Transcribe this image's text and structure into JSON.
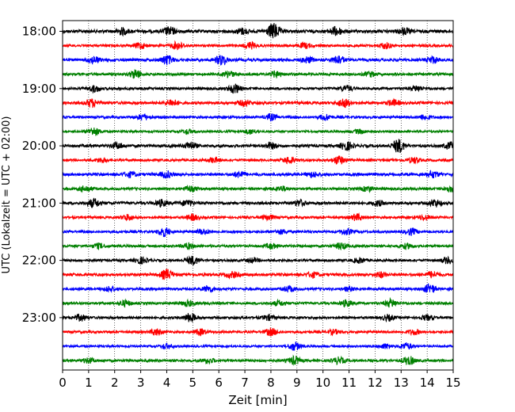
{
  "chart_data": {
    "type": "line",
    "chart_kind": "seismogram-helicorder",
    "title": "",
    "xlabel": "Zeit  [min]",
    "ylabel": "UTC (Lokalzeit = UTC + 02:00)",
    "xlim": [
      0,
      15
    ],
    "x_ticks": [
      "0",
      "1",
      "2",
      "3",
      "4",
      "5",
      "6",
      "7",
      "8",
      "9",
      "10",
      "11",
      "12",
      "13",
      "14",
      "15"
    ],
    "y_ticks": [
      "18:00",
      "19:00",
      "20:00",
      "21:00",
      "22:00",
      "23:00"
    ],
    "grid": "vertical-dotted",
    "trace_colors": [
      "#000000",
      "#ff0000",
      "#0000ff",
      "#008000"
    ],
    "trace_interval_minutes": 15,
    "traces": [
      {
        "start": "18:00",
        "color": "#000000",
        "noise": 0.45,
        "bursts": [
          [
            2.3,
            0.9
          ],
          [
            4.1,
            1.1
          ],
          [
            6.9,
            0.8
          ],
          [
            8.1,
            2.2
          ],
          [
            10.5,
            1.2
          ],
          [
            13.1,
            0.9
          ]
        ]
      },
      {
        "start": "18:15",
        "color": "#ff0000",
        "noise": 0.35,
        "bursts": [
          [
            3.0,
            0.8
          ],
          [
            4.4,
            1.0
          ],
          [
            7.2,
            0.9
          ],
          [
            9.3,
            0.7
          ],
          [
            12.4,
            0.8
          ]
        ]
      },
      {
        "start": "18:30",
        "color": "#0000ff",
        "noise": 0.4,
        "bursts": [
          [
            1.2,
            1.0
          ],
          [
            4.0,
            1.3
          ],
          [
            6.1,
            1.4
          ],
          [
            9.4,
            0.8
          ],
          [
            10.6,
            1.2
          ],
          [
            14.2,
            0.9
          ]
        ]
      },
      {
        "start": "18:45",
        "color": "#008000",
        "noise": 0.35,
        "bursts": [
          [
            2.8,
            1.2
          ],
          [
            6.4,
            0.8
          ],
          [
            8.2,
            0.9
          ],
          [
            11.8,
            0.7
          ]
        ]
      },
      {
        "start": "19:00",
        "color": "#000000",
        "noise": 0.35,
        "bursts": [
          [
            1.2,
            0.9
          ],
          [
            6.6,
            1.3
          ],
          [
            10.9,
            0.8
          ],
          [
            13.6,
            0.7
          ]
        ]
      },
      {
        "start": "19:15",
        "color": "#ff0000",
        "noise": 0.4,
        "bursts": [
          [
            1.1,
            1.1
          ],
          [
            4.2,
            0.9
          ],
          [
            7.0,
            0.8
          ],
          [
            10.8,
            1.2
          ],
          [
            12.7,
            0.8
          ]
        ]
      },
      {
        "start": "19:30",
        "color": "#0000ff",
        "noise": 0.35,
        "bursts": [
          [
            3.1,
            0.8
          ],
          [
            8.0,
            0.9
          ],
          [
            10.1,
            0.8
          ],
          [
            13.9,
            0.7
          ]
        ]
      },
      {
        "start": "19:45",
        "color": "#008000",
        "noise": 0.3,
        "bursts": [
          [
            1.2,
            1.2
          ],
          [
            4.8,
            0.6
          ],
          [
            7.2,
            0.7
          ],
          [
            11.4,
            0.6
          ]
        ]
      },
      {
        "start": "20:00",
        "color": "#000000",
        "noise": 0.4,
        "bursts": [
          [
            2.1,
            0.8
          ],
          [
            4.9,
            1.0
          ],
          [
            8.0,
            0.8
          ],
          [
            10.9,
            1.2
          ],
          [
            12.9,
            1.9
          ],
          [
            14.9,
            1.0
          ]
        ]
      },
      {
        "start": "20:15",
        "color": "#ff0000",
        "noise": 0.35,
        "bursts": [
          [
            1.5,
            0.6
          ],
          [
            5.8,
            0.7
          ],
          [
            8.7,
            0.9
          ],
          [
            10.6,
            1.2
          ],
          [
            13.5,
            0.8
          ]
        ]
      },
      {
        "start": "20:30",
        "color": "#0000ff",
        "noise": 0.4,
        "bursts": [
          [
            2.6,
            0.7
          ],
          [
            4.0,
            0.9
          ],
          [
            6.8,
            0.8
          ],
          [
            9.6,
            0.7
          ],
          [
            14.2,
            0.9
          ]
        ]
      },
      {
        "start": "20:45",
        "color": "#008000",
        "noise": 0.35,
        "bursts": [
          [
            0.9,
            0.8
          ],
          [
            4.9,
            0.8
          ],
          [
            8.4,
            0.7
          ],
          [
            11.7,
            0.7
          ],
          [
            14.9,
            0.8
          ]
        ]
      },
      {
        "start": "21:00",
        "color": "#000000",
        "noise": 0.4,
        "bursts": [
          [
            1.2,
            1.2
          ],
          [
            3.8,
            0.9
          ],
          [
            4.8,
            0.8
          ],
          [
            9.1,
            0.8
          ],
          [
            12.1,
            0.7
          ],
          [
            14.3,
            1.0
          ]
        ]
      },
      {
        "start": "21:15",
        "color": "#ff0000",
        "noise": 0.35,
        "bursts": [
          [
            2.5,
            0.8
          ],
          [
            5.0,
            0.8
          ],
          [
            7.9,
            0.7
          ],
          [
            11.3,
            0.9
          ],
          [
            13.9,
            0.7
          ]
        ]
      },
      {
        "start": "21:30",
        "color": "#0000ff",
        "noise": 0.35,
        "bursts": [
          [
            3.9,
            1.3
          ],
          [
            5.4,
            0.7
          ],
          [
            8.4,
            0.6
          ],
          [
            10.9,
            0.8
          ],
          [
            13.4,
            0.9
          ]
        ]
      },
      {
        "start": "21:45",
        "color": "#008000",
        "noise": 0.35,
        "bursts": [
          [
            1.4,
            0.7
          ],
          [
            4.8,
            0.8
          ],
          [
            8.0,
            0.7
          ],
          [
            10.7,
            0.9
          ],
          [
            13.2,
            0.7
          ]
        ]
      },
      {
        "start": "22:00",
        "color": "#000000",
        "noise": 0.35,
        "bursts": [
          [
            3.0,
            0.9
          ],
          [
            5.0,
            1.2
          ],
          [
            7.3,
            0.6
          ],
          [
            11.4,
            0.7
          ],
          [
            14.8,
            0.9
          ]
        ]
      },
      {
        "start": "22:15",
        "color": "#ff0000",
        "noise": 0.4,
        "bursts": [
          [
            4.0,
            1.4
          ],
          [
            6.5,
            0.8
          ],
          [
            9.6,
            0.7
          ],
          [
            12.2,
            0.7
          ],
          [
            14.2,
            0.8
          ]
        ]
      },
      {
        "start": "22:30",
        "color": "#0000ff",
        "noise": 0.35,
        "bursts": [
          [
            1.8,
            0.7
          ],
          [
            5.6,
            0.8
          ],
          [
            8.7,
            0.8
          ],
          [
            11.0,
            0.6
          ],
          [
            14.1,
            1.3
          ]
        ]
      },
      {
        "start": "22:45",
        "color": "#008000",
        "noise": 0.35,
        "bursts": [
          [
            2.4,
            0.8
          ],
          [
            4.8,
            0.8
          ],
          [
            8.3,
            0.7
          ],
          [
            10.9,
            0.9
          ],
          [
            12.6,
            1.1
          ]
        ]
      },
      {
        "start": "23:00",
        "color": "#000000",
        "noise": 0.35,
        "bursts": [
          [
            0.7,
            0.9
          ],
          [
            4.9,
            1.2
          ],
          [
            7.9,
            0.7
          ],
          [
            12.5,
            0.8
          ],
          [
            14.0,
            0.7
          ]
        ]
      },
      {
        "start": "23:15",
        "color": "#ff0000",
        "noise": 0.35,
        "bursts": [
          [
            3.6,
            0.9
          ],
          [
            5.3,
            0.8
          ],
          [
            8.0,
            1.0
          ],
          [
            10.4,
            0.6
          ],
          [
            13.5,
            0.7
          ]
        ]
      },
      {
        "start": "23:30",
        "color": "#0000ff",
        "noise": 0.3,
        "bursts": [
          [
            4.0,
            0.7
          ],
          [
            8.9,
            1.2
          ],
          [
            12.4,
            0.7
          ],
          [
            13.2,
            0.9
          ]
        ]
      },
      {
        "start": "23:45",
        "color": "#008000",
        "noise": 0.35,
        "bursts": [
          [
            1.0,
            0.7
          ],
          [
            5.6,
            0.7
          ],
          [
            8.9,
            1.1
          ],
          [
            10.6,
            0.9
          ],
          [
            13.3,
            1.2
          ]
        ]
      }
    ]
  }
}
